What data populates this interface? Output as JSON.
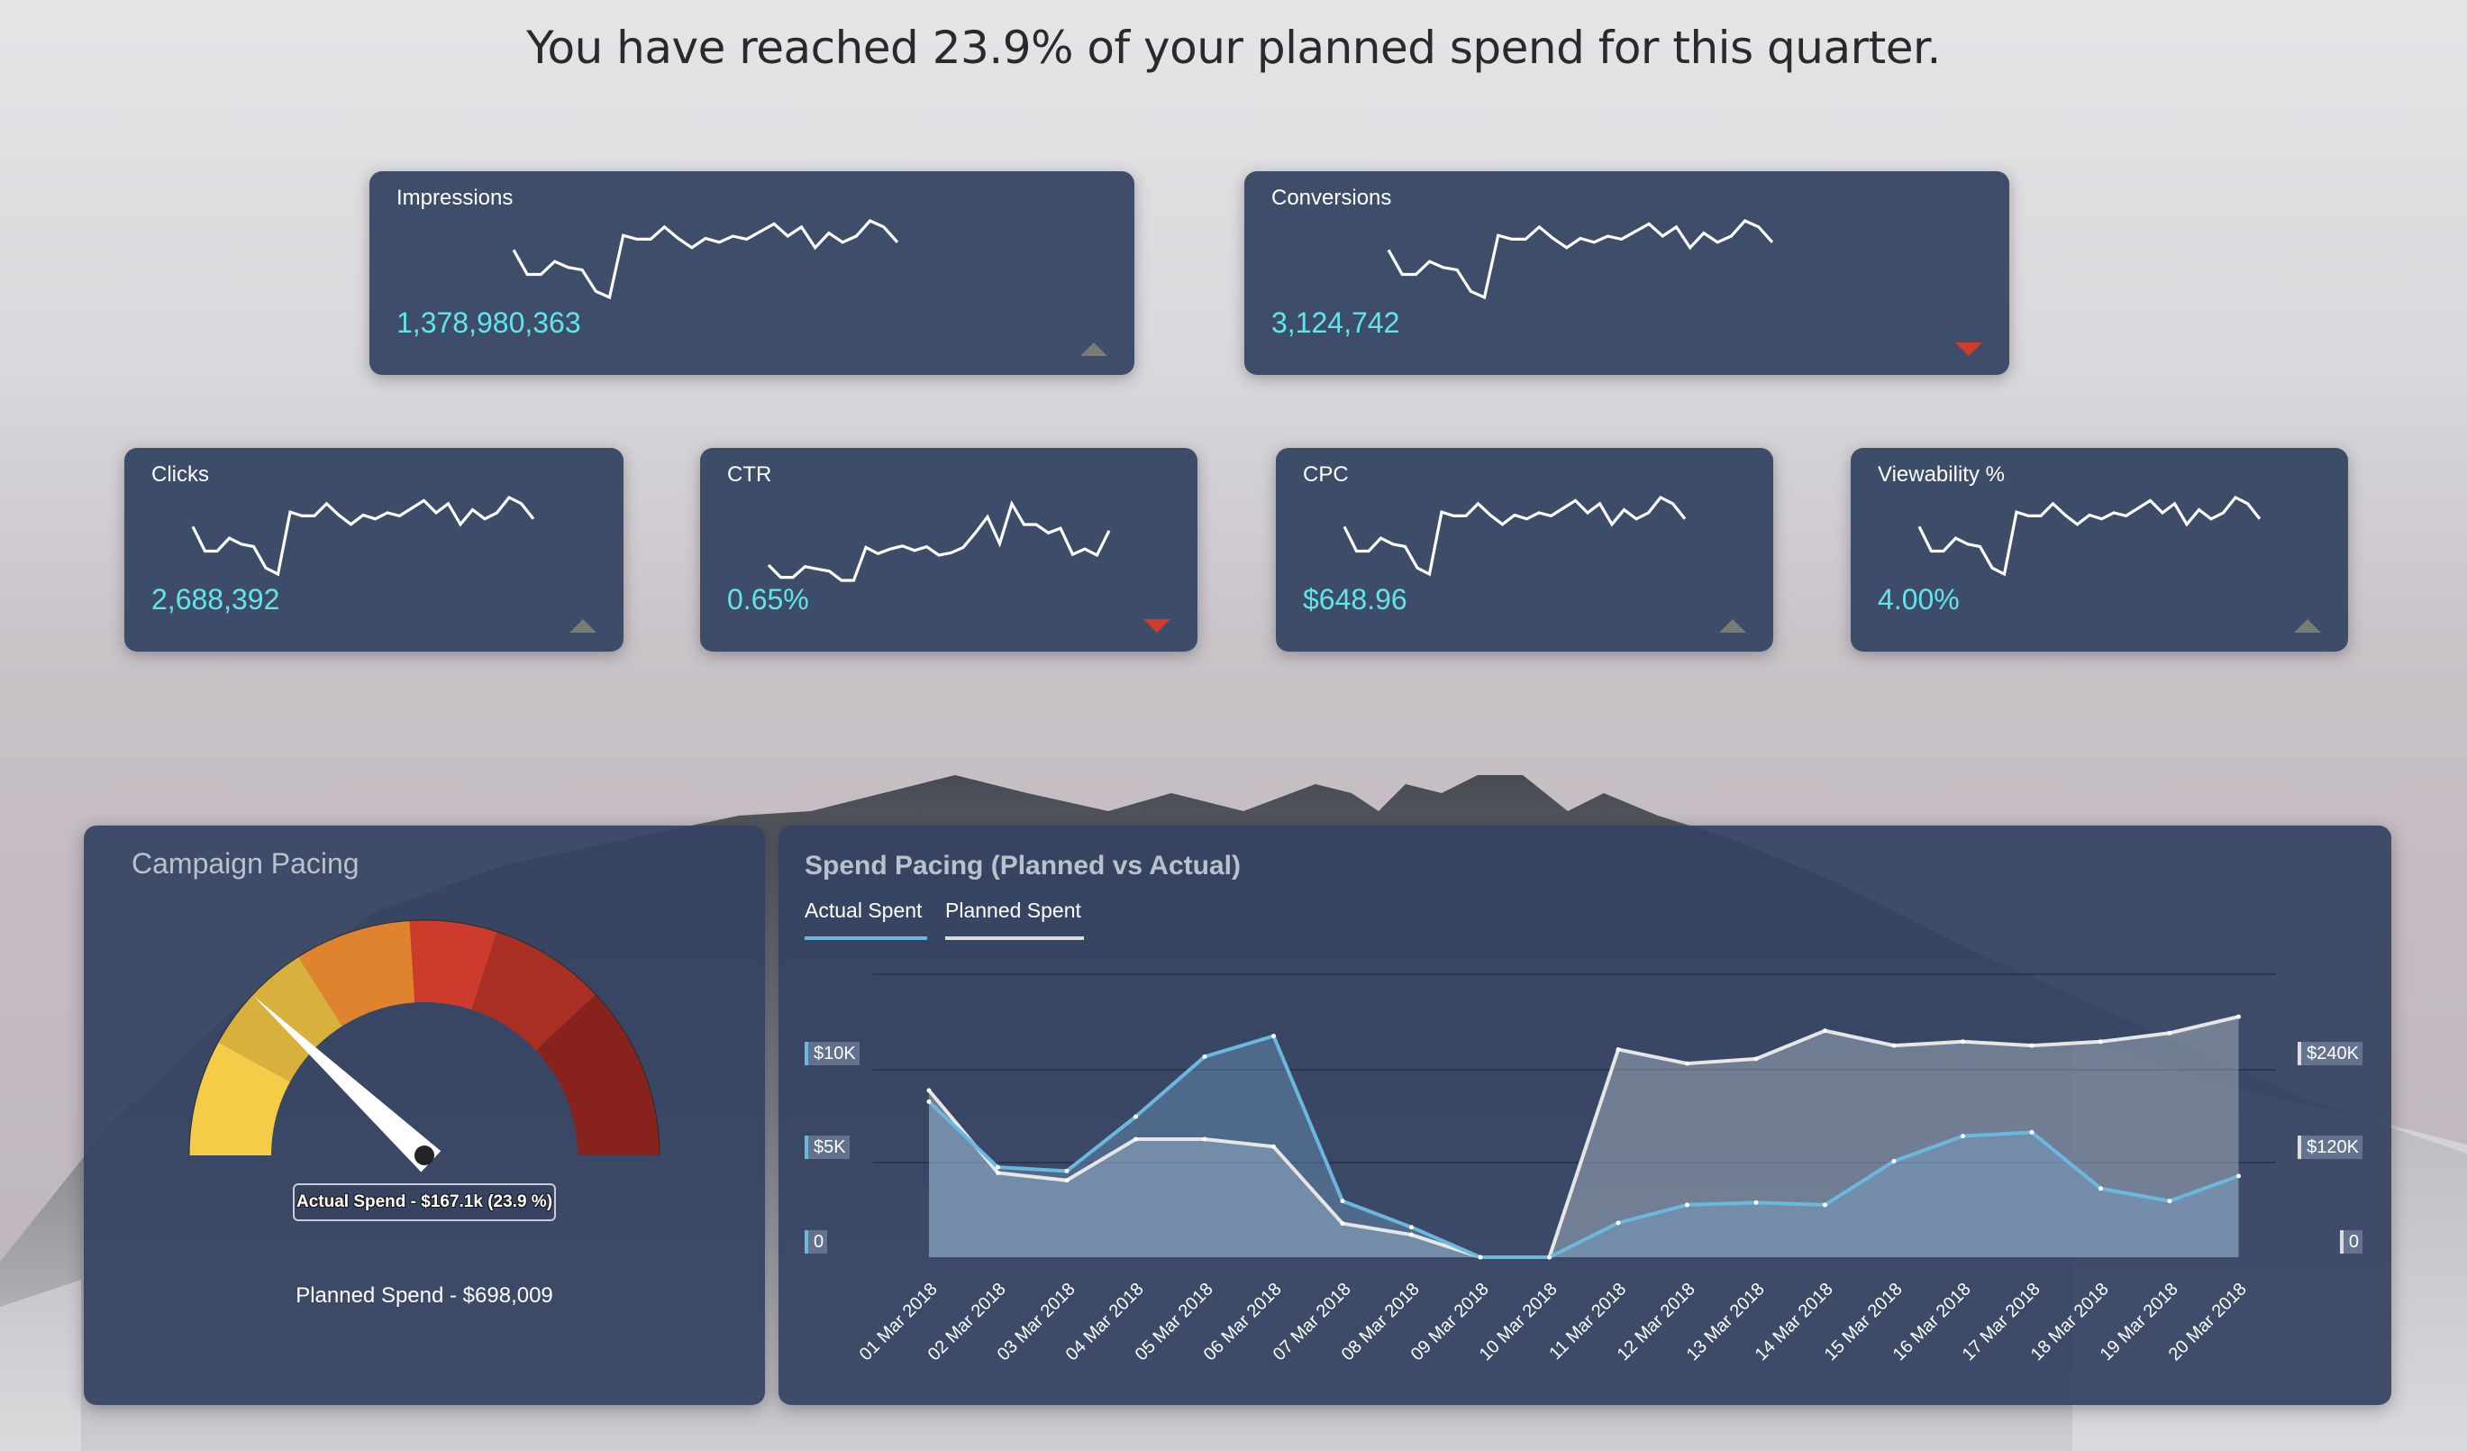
{
  "headline": "You have reached 23.9% of your planned spend for this quarter.",
  "colors": {
    "card_bg": "#3a4966",
    "value_cyan": "#63e3ea",
    "trend_up": "#777c77",
    "trend_down": "#d23c2a",
    "actual_line": "#6ab8de",
    "planned_line": "#dcdcdc",
    "panel_title": "#b9c1cc"
  },
  "kpi_cards": [
    {
      "id": "impressions",
      "label": "Impressions",
      "value": "1,378,980,363",
      "trend": "up",
      "trend_icon": "triangle-up-icon",
      "sparkline": "standard"
    },
    {
      "id": "conversions",
      "label": "Conversions",
      "value": "3,124,742",
      "trend": "down",
      "trend_icon": "triangle-down-icon",
      "sparkline": "standard"
    },
    {
      "id": "clicks",
      "label": "Clicks",
      "value": "2,688,392",
      "trend": "up",
      "trend_icon": "triangle-up-icon",
      "sparkline": "standard"
    },
    {
      "id": "ctr",
      "label": "CTR",
      "value": "0.65%",
      "trend": "down",
      "trend_icon": "triangle-down-icon",
      "sparkline": "ctr"
    },
    {
      "id": "cpc",
      "label": "CPC",
      "value": "$648.96",
      "trend": "up",
      "trend_icon": "triangle-up-icon",
      "sparkline": "standard"
    },
    {
      "id": "viewability",
      "label": "Viewability %",
      "value": "4.00%",
      "trend": "up",
      "trend_icon": "triangle-up-icon",
      "sparkline": "standard"
    }
  ],
  "sparklines": {
    "standard": [
      0.38,
      0.7,
      0.7,
      0.53,
      0.61,
      0.64,
      0.92,
      1.0,
      0.19,
      0.24,
      0.24,
      0.08,
      0.23,
      0.35,
      0.23,
      0.28,
      0.2,
      0.24,
      0.14,
      0.04,
      0.2,
      0.08,
      0.35,
      0.16,
      0.28,
      0.2,
      0.0,
      0.08,
      0.28
    ],
    "ctr": [
      0.8,
      0.96,
      0.96,
      0.82,
      0.85,
      0.88,
      1.0,
      1.0,
      0.57,
      0.65,
      0.59,
      0.55,
      0.61,
      0.56,
      0.67,
      0.64,
      0.57,
      0.38,
      0.17,
      0.52,
      0.0,
      0.27,
      0.27,
      0.38,
      0.32,
      0.66,
      0.59,
      0.67,
      0.35
    ]
  },
  "campaign_pacing": {
    "title": "Campaign Pacing",
    "gauge": {
      "min": 0,
      "max": 100,
      "value_pct": 23.9,
      "bands": [
        {
          "from": 0,
          "to": 16,
          "color": "#f5cc47"
        },
        {
          "from": 16,
          "to": 32,
          "color": "#d8b13d"
        },
        {
          "from": 32,
          "to": 48,
          "color": "#e0832f"
        },
        {
          "from": 48,
          "to": 60,
          "color": "#cd3b2c"
        },
        {
          "from": 60,
          "to": 76,
          "color": "#a92e23"
        },
        {
          "from": 76,
          "to": 100,
          "color": "#87231c"
        }
      ]
    },
    "tooltip": "Actual Spend - $167.1k (23.9 %)",
    "planned_spend": "Planned Spend - $698,009"
  },
  "spend_pacing": {
    "title": "Spend Pacing (Planned vs Actual)",
    "legend": [
      {
        "label": "Actual Spent",
        "color": "#6ab8de"
      },
      {
        "label": "Planned Spent",
        "color": "#dcdcdc"
      }
    ],
    "left_axis_ticks": [
      "$10K",
      "$5K",
      "0"
    ],
    "right_axis_ticks": [
      "$240K",
      "$120K",
      "0"
    ]
  },
  "chart_data": {
    "type": "area",
    "title": "Spend Pacing (Planned vs Actual)",
    "categories": [
      "01 Mar 2018",
      "02 Mar 2018",
      "03 Mar 2018",
      "04 Mar 2018",
      "05 Mar 2018",
      "06 Mar 2018",
      "07 Mar 2018",
      "08 Mar 2018",
      "09 Mar 2018",
      "10 Mar 2018",
      "11 Mar 2018",
      "12 Mar 2018",
      "13 Mar 2018",
      "14 Mar 2018",
      "15 Mar 2018",
      "16 Mar 2018",
      "17 Mar 2018",
      "18 Mar 2018",
      "19 Mar 2018",
      "20 Mar 2018"
    ],
    "series": [
      {
        "name": "Actual Spent",
        "axis": "left-then-right",
        "values": [
          8300,
          4800,
          4600,
          7500,
          10700,
          11800,
          3000,
          1600,
          0,
          0,
          44000,
          67000,
          70000,
          67000,
          123000,
          155000,
          160000,
          88000,
          72000,
          104000
        ]
      },
      {
        "name": "Planned Spent",
        "axis": "left-then-right",
        "values": [
          8900,
          4500,
          4100,
          6300,
          6300,
          5900,
          1800,
          1200,
          0,
          0,
          266000,
          248000,
          254000,
          290000,
          271000,
          276000,
          271000,
          276000,
          287000,
          308000
        ]
      }
    ],
    "axis_switch_note": "01-10 Mar plotted on left axis ($0-$15K); 11-20 Mar on right axis ($0-$360K)",
    "left_axis": {
      "ticks": [
        "0",
        "$5K",
        "$10K"
      ],
      "ylim": [
        0,
        15000
      ]
    },
    "right_axis": {
      "ticks": [
        "0",
        "$120K",
        "$240K"
      ],
      "ylim": [
        0,
        360000
      ]
    },
    "xlabel": "",
    "ylabel": "",
    "grid": true,
    "legend_position": "top-left"
  }
}
